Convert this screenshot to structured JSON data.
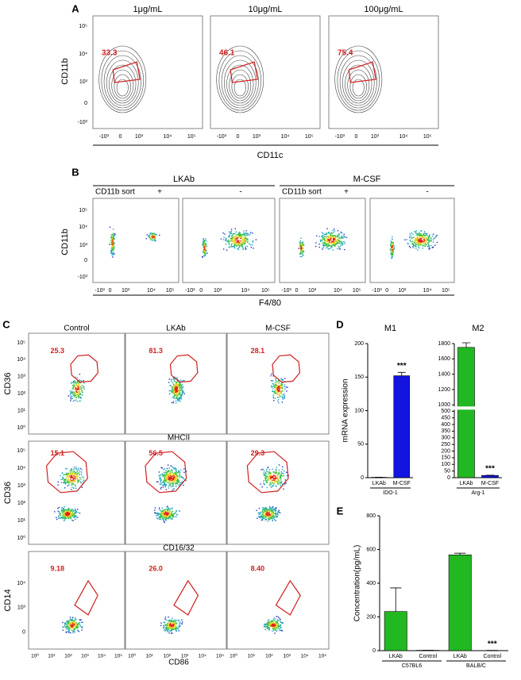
{
  "panel_a": {
    "label": "A",
    "titles": [
      "1μg/mL",
      "10μg/mL",
      "100μg/mL"
    ],
    "gates": [
      "33.3",
      "46.1",
      "75.4"
    ],
    "y_label": "CD11b",
    "x_label": "CD11c",
    "y_ticks": [
      "10⁵",
      "10⁴",
      "10³",
      "0",
      "-10³"
    ],
    "x_ticks": [
      "-10³",
      "0",
      "10³",
      "10⁴",
      "10⁵"
    ]
  },
  "panel_b": {
    "label": "B",
    "groups": [
      "LKAb",
      "M-CSF"
    ],
    "sort_label": "CD11b sort",
    "signs": [
      "+",
      "-"
    ],
    "y_label": "CD11b",
    "x_label": "F4/80",
    "y_ticks": [
      "10⁵",
      "10⁴",
      "10³",
      "0",
      "-10³"
    ],
    "x_ticks": [
      "-10³",
      "0",
      "10³",
      "10⁴",
      "10⁵"
    ]
  },
  "panel_c": {
    "label": "C",
    "columns": [
      "Control",
      "LKAb",
      "M-CSF"
    ],
    "rows": [
      {
        "y_label": "CD36",
        "x_label": "MHCII",
        "gates": [
          "25.3",
          "81.3",
          "28.1"
        ],
        "y_ticks": [
          "10⁵",
          "10⁴",
          "10³",
          "10²",
          "10¹",
          "10⁰"
        ]
      },
      {
        "y_label": "CD36",
        "x_label": "CD16/32",
        "gates": [
          "15.1",
          "56.5",
          "29.3"
        ],
        "y_ticks": [
          "10⁵",
          "10⁴",
          "10³",
          "10²",
          "10¹",
          "10⁰"
        ]
      },
      {
        "y_label": "CD14",
        "x_label": "CD86",
        "gates": [
          "9.18",
          "26.0",
          "8.40"
        ],
        "y_ticks": [
          "10⁴",
          "10³",
          "0"
        ]
      }
    ],
    "x_ticks": [
      "10⁰",
      "10¹",
      "10²",
      "10³",
      "10⁴",
      "10⁵"
    ]
  },
  "panel_d": {
    "label": "D"
  },
  "panel_e": {
    "label": "E"
  },
  "chart_data": [
    {
      "type": "bar",
      "title": "M1",
      "y_label": "mRNA expression",
      "x_label": "IDO-1",
      "categories": [
        "LKAb",
        "M-CSF"
      ],
      "values": [
        0.5,
        152
      ],
      "errors": [
        0.2,
        5
      ],
      "colors": [
        "#22b822",
        "#1414e0"
      ],
      "significance": [
        null,
        "***"
      ],
      "ylim": [
        0,
        200
      ],
      "yticks": [
        0,
        50,
        100,
        150,
        200
      ]
    },
    {
      "type": "bar",
      "title": "M2",
      "x_label": "Arg-1",
      "categories": [
        "LKAb",
        "M-CSF"
      ],
      "values": [
        1750,
        17
      ],
      "errors": [
        60,
        1.5
      ],
      "colors": [
        "#22b822",
        "#1414e0"
      ],
      "significance": [
        null,
        "***"
      ],
      "ylim": [
        0,
        1800
      ],
      "ybreak": [
        500,
        1000
      ],
      "yticks": [
        0,
        50,
        100,
        150,
        200,
        250,
        300,
        350,
        400,
        450,
        500,
        1000,
        1200,
        1400,
        1600,
        1800
      ]
    },
    {
      "type": "bar",
      "y_label": "Concentration(pg/mL)",
      "categories": [
        "LKAb",
        "Control",
        "LKAb",
        "Control"
      ],
      "groups": [
        "C57BL6",
        "BALB/C"
      ],
      "values": [
        232,
        2,
        568,
        1
      ],
      "errors": [
        140,
        0.5,
        10,
        0.5
      ],
      "colors": [
        "#22b822",
        "#22b822",
        "#22b822",
        "#22b822"
      ],
      "significance": [
        null,
        null,
        null,
        "***"
      ],
      "ylim": [
        0,
        800
      ],
      "yticks": [
        0,
        200,
        400,
        600,
        800
      ]
    }
  ]
}
